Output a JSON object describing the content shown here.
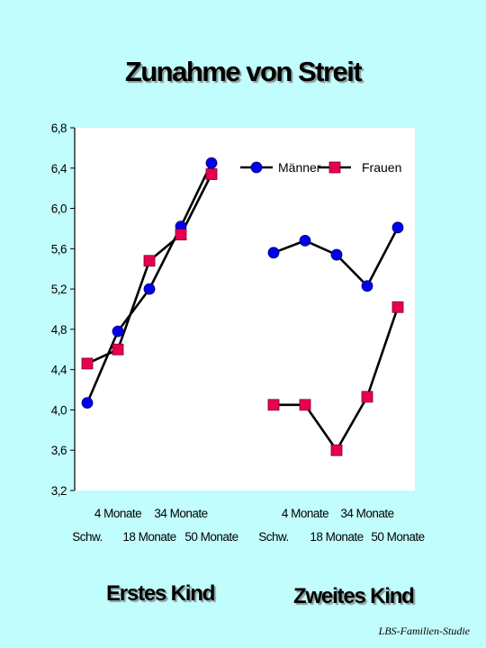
{
  "title": "Zunahme von Streit",
  "footer": "LBS-Familien-Studie",
  "chart_data": {
    "type": "line",
    "title": "Zunahme von Streit",
    "y_ticks": [
      "6,8",
      "6,4",
      "6,0",
      "5,6",
      "5,2",
      "4,8",
      "4,4",
      "4,0",
      "3,6",
      "3,2"
    ],
    "ylim": [
      3.2,
      6.8
    ],
    "grid": false,
    "legend_position": "top-right",
    "categories": [
      "Schw.",
      "4 Monate",
      "18 Monate",
      "34 Monate",
      "50 Monate"
    ],
    "groups": [
      {
        "name": "Erstes Kind",
        "series": [
          {
            "name": "Männer",
            "values": [
              4.07,
              4.78,
              5.2,
              5.82,
              6.45
            ]
          },
          {
            "name": "Frauen",
            "values": [
              4.46,
              4.6,
              5.48,
              5.74,
              6.34
            ]
          }
        ]
      },
      {
        "name": "Zweites Kind",
        "series": [
          {
            "name": "Männer",
            "values": [
              5.56,
              5.68,
              5.54,
              5.23,
              5.81
            ]
          },
          {
            "name": "Frauen",
            "values": [
              4.05,
              4.05,
              3.6,
              4.13,
              5.02
            ]
          }
        ]
      }
    ],
    "legend": [
      {
        "name": "Männer",
        "marker": "circle",
        "color": "#0000ee"
      },
      {
        "name": "Frauen",
        "marker": "square",
        "color": "#e8004f"
      }
    ],
    "colors": {
      "maenner": "#0000ee",
      "frauen": "#e8004f",
      "line": "#000000",
      "plot_bg": "#ffffff"
    }
  }
}
